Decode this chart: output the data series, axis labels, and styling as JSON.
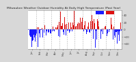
{
  "title": "Milwaukee Weather Outdoor Humidity At Daily High Temperature (Past Year)",
  "background_color": "#d8d8d8",
  "plot_bg_color": "#ffffff",
  "bar_color_low": "#1a1aff",
  "bar_color_high": "#dd1111",
  "ylim": [
    -55,
    55
  ],
  "yticks": [
    -40,
    -20,
    0,
    20,
    40
  ],
  "ytick_labels": [
    "-40",
    "-20",
    "0",
    "20",
    "40"
  ],
  "ylabel_fontsize": 3.0,
  "xlabel_fontsize": 2.5,
  "title_fontsize": 3.2,
  "num_points": 365,
  "seed": 42,
  "month_lengths": [
    31,
    28,
    31,
    30,
    31,
    30,
    31,
    31,
    30,
    31,
    30,
    31
  ],
  "month_labels": [
    "Jan",
    "Feb",
    "Mar",
    "Apr",
    "May",
    "Jun",
    "Jul",
    "Aug",
    "Sep",
    "Oct",
    "Nov",
    "Dec"
  ],
  "grid_color": "#aaaaaa",
  "legend_blue": "#1a1aff",
  "legend_red": "#dd1111"
}
